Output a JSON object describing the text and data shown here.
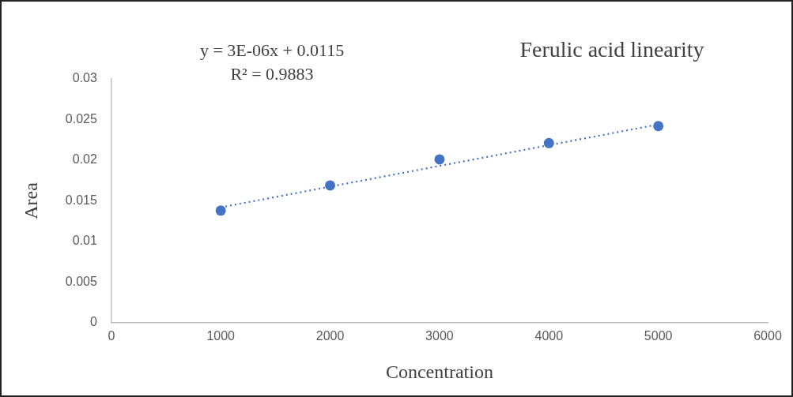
{
  "chart_data": {
    "type": "scatter",
    "title": "Ferulic acid linearity",
    "xlabel": "Concentration",
    "ylabel": "Area",
    "annotations": [
      "y = 3E-06x + 0.0115",
      "R² = 0.9883"
    ],
    "xlim": [
      0,
      6000
    ],
    "xticks": [
      0,
      1000,
      2000,
      3000,
      4000,
      5000,
      6000
    ],
    "ylim": [
      0,
      0.03
    ],
    "yticks": [
      0,
      0.005,
      0.01,
      0.015,
      0.02,
      0.025,
      0.03
    ],
    "grid": false,
    "legend": false,
    "marker": "circle",
    "series": [
      {
        "color": "#4472c4",
        "x": [
          1000,
          2000,
          3000,
          4000,
          5000
        ],
        "values": [
          0.0138,
          0.0169,
          0.0201,
          0.0221,
          0.0242
        ]
      },
      {
        "type": "line",
        "color": "#4472c4",
        "x": [
          1000,
          5000
        ],
        "values": [
          0.0142,
          0.0244
        ],
        "marker": "none",
        "line_style": "dotted"
      }
    ]
  }
}
